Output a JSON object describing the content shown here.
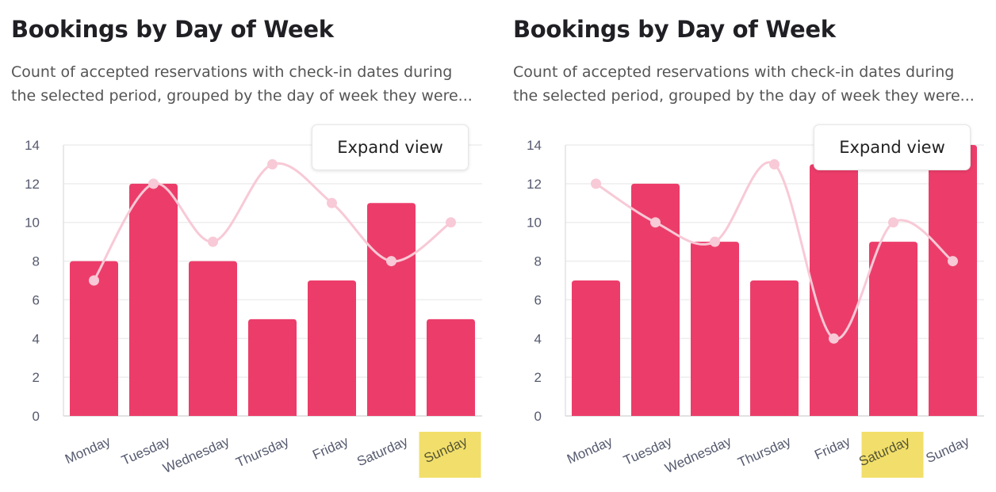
{
  "charts": [
    {
      "title": "Bookings by Day of Week",
      "subtitle_line1": "Count of accepted reservations with check-in dates during",
      "subtitle_line2": "the selected period, grouped by the day of week they were...",
      "expand_label": "Expand view"
    },
    {
      "title": "Bookings by Day of Week",
      "subtitle_line1": "Count of accepted reservations with check-in dates during",
      "subtitle_line2": "the selected period, grouped by the day of week they were...",
      "expand_label": "Expand view"
    }
  ],
  "chart_data": [
    {
      "type": "bar",
      "categories": [
        "Monday",
        "Tuesday",
        "Wednesday",
        "Thursday",
        "Friday",
        "Saturday",
        "Sunday"
      ],
      "series": [
        {
          "type": "bar",
          "values": [
            8,
            12,
            8,
            5,
            7,
            11,
            5
          ]
        },
        {
          "type": "line",
          "values": [
            7,
            12,
            9,
            13,
            11,
            8,
            10
          ]
        }
      ],
      "ylim": [
        0,
        14
      ],
      "yticks": [
        0,
        2,
        4,
        6,
        8,
        10,
        12,
        14
      ],
      "grid": true,
      "highlighted_category": "Sunday",
      "colors": {
        "bar": "#ec3d6a",
        "line": "#f8c9d6",
        "highlight": "#f2df6b"
      }
    },
    {
      "type": "bar",
      "categories": [
        "Monday",
        "Tuesday",
        "Wednesday",
        "Thursday",
        "Friday",
        "Saturday",
        "Sunday"
      ],
      "series": [
        {
          "type": "bar",
          "values": [
            7,
            12,
            9,
            7,
            13,
            9,
            14
          ]
        },
        {
          "type": "line",
          "values": [
            12,
            10,
            9,
            13,
            4,
            10,
            8
          ]
        }
      ],
      "ylim": [
        0,
        14
      ],
      "yticks": [
        0,
        2,
        4,
        6,
        8,
        10,
        12,
        14
      ],
      "grid": true,
      "highlighted_category": "Saturday",
      "colors": {
        "bar": "#ec3d6a",
        "line": "#f8c9d6",
        "highlight": "#f2df6b"
      }
    }
  ]
}
